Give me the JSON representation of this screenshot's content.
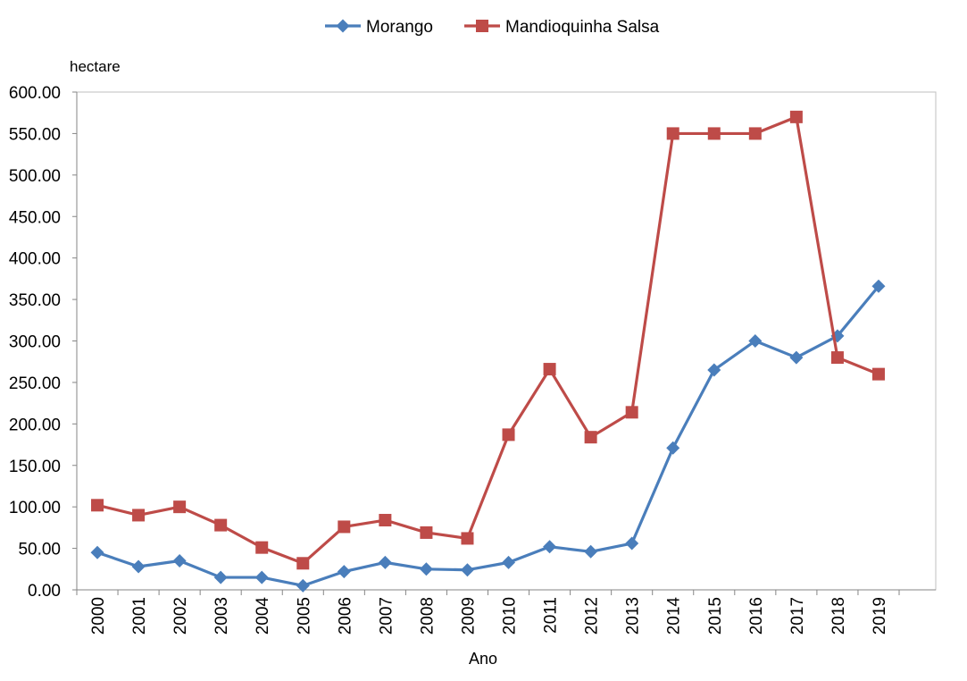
{
  "chart_data": {
    "type": "line",
    "title": "",
    "xlabel": "Ano",
    "ylabel": "hectare",
    "ylim": [
      0,
      600
    ],
    "y_step": 50,
    "y_tick_format": "2dp",
    "grid": false,
    "legend_position": "top-center",
    "categories": [
      "2000",
      "2001",
      "2002",
      "2003",
      "2004",
      "2005",
      "2006",
      "2007",
      "2008",
      "2009",
      "2010",
      "2011",
      "2012",
      "2013",
      "2014",
      "2015",
      "2016",
      "2017",
      "2018",
      "2019"
    ],
    "series": [
      {
        "name": "Morango",
        "color": "#4a7ebb",
        "marker": "diamond",
        "values": [
          45,
          28,
          35,
          15,
          15,
          5,
          22,
          33,
          25,
          24,
          33,
          52,
          46,
          56,
          171,
          265,
          300,
          280,
          306,
          366
        ]
      },
      {
        "name": "Mandioquinha Salsa",
        "color": "#be4b48",
        "marker": "square",
        "values": [
          102,
          90,
          100,
          78,
          51,
          32,
          76,
          84,
          69,
          62,
          187,
          266,
          184,
          214,
          550,
          550,
          550,
          570,
          280,
          260
        ]
      }
    ]
  }
}
